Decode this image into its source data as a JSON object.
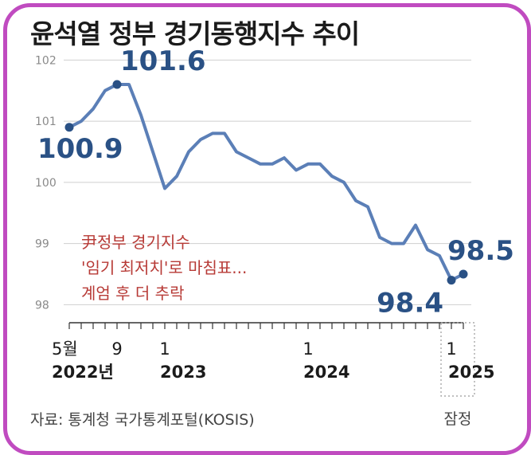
{
  "chart_data": {
    "type": "line",
    "title": "윤석열 정부 경기동행지수 추이",
    "source": "자료: 통계청 국가통계포털(KOSIS)",
    "ylim": [
      97.9,
      102.2
    ],
    "yticks": [
      98,
      99,
      100,
      101,
      102
    ],
    "grid": true,
    "series": [
      {
        "color": "#5b7fb7",
        "values": [
          100.9,
          101.0,
          101.2,
          101.5,
          101.6,
          101.6,
          101.1,
          100.5,
          99.9,
          100.1,
          100.5,
          100.7,
          100.8,
          100.8,
          100.5,
          100.4,
          100.3,
          100.3,
          100.4,
          100.2,
          100.3,
          100.3,
          100.1,
          100.0,
          99.7,
          99.6,
          99.1,
          99.0,
          99.0,
          99.3,
          98.9,
          98.8,
          98.4,
          98.5
        ]
      }
    ],
    "x_ticks": [
      {
        "index": 0,
        "label": "5월",
        "year": "2022년"
      },
      {
        "index": 4,
        "label": "9",
        "year": ""
      },
      {
        "index": 8,
        "label": "1",
        "year": "2023"
      },
      {
        "index": 20,
        "label": "1",
        "year": "2024"
      },
      {
        "index": 32,
        "label": "1",
        "year": "2025"
      }
    ],
    "data_labels": [
      {
        "index": 0,
        "text": "100.9"
      },
      {
        "index": 4,
        "text": "101.6"
      },
      {
        "index": 32,
        "text": "98.4"
      },
      {
        "index": 33,
        "text": "98.5"
      }
    ],
    "annotation": [
      "尹정부 경기지수",
      "'임기 최저치'로 마침표...",
      "계엄 후 더 추락"
    ],
    "provisional_label": "잠정",
    "colors": {
      "line": "#5b7fb7",
      "label": "#2a5185",
      "annotation": "#b73a36",
      "grid": "#cfcfcf",
      "frame": "#c04bc0"
    }
  }
}
